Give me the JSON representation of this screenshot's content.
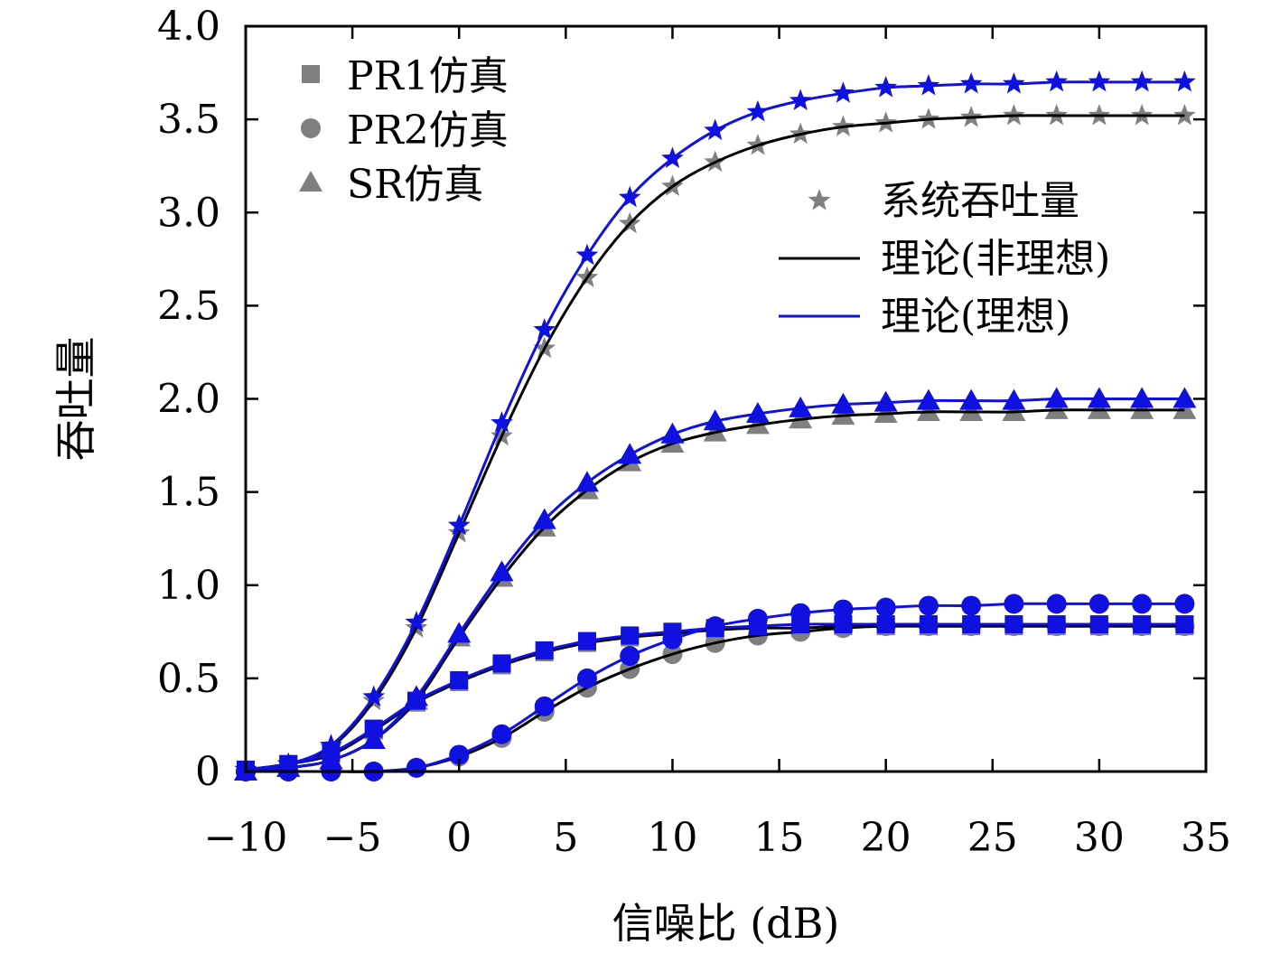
{
  "chart_data": {
    "type": "line",
    "xlabel": "信噪比 (dB)",
    "ylabel": "吞吐量",
    "xlim": [
      -10,
      35
    ],
    "ylim": [
      0,
      4
    ],
    "xticks": [
      -10,
      -5,
      0,
      5,
      10,
      15,
      20,
      25,
      30,
      35
    ],
    "xtick_labels": [
      "−10",
      "−5",
      "0",
      "5",
      "10",
      "15",
      "20",
      "25",
      "30",
      "35"
    ],
    "yticks": [
      0,
      0.5,
      1,
      1.5,
      2,
      2.5,
      3,
      3.5,
      4
    ],
    "ytick_labels": [
      "0",
      "0.5",
      "1.0",
      "1.5",
      "2.0",
      "2.5",
      "3.0",
      "3.5",
      "4.0"
    ],
    "grid": false,
    "x": [
      -10,
      -8,
      -6,
      -4,
      -2,
      0,
      2,
      4,
      6,
      8,
      10,
      12,
      14,
      16,
      18,
      20,
      22,
      24,
      26,
      28,
      30,
      32,
      34
    ],
    "legend_left": [
      {
        "label": "PR1仿真",
        "marker": "square"
      },
      {
        "label": "PR2仿真",
        "marker": "circle"
      },
      {
        "label": "SR仿真",
        "marker": "triangle"
      }
    ],
    "legend_right": [
      {
        "label": "系统吞吐量",
        "marker": "star"
      },
      {
        "label": "理论(非理想)",
        "line_color": "#000000"
      },
      {
        "label": "理论(理想)",
        "line_color": "#1010e0"
      }
    ],
    "colors": {
      "non_ideal_line": "#000000",
      "ideal_line": "#1010e0",
      "non_ideal_marker": "#7f7f7f",
      "ideal_marker": "#1010e0",
      "axis": "#000000"
    },
    "series": [
      {
        "scheme": "non-ideal",
        "marker": "star",
        "values": [
          0.01,
          0.04,
          0.13,
          0.38,
          0.77,
          1.28,
          1.8,
          2.27,
          2.65,
          2.94,
          3.14,
          3.27,
          3.36,
          3.42,
          3.46,
          3.48,
          3.5,
          3.51,
          3.52,
          3.52,
          3.52,
          3.52,
          3.52
        ]
      },
      {
        "scheme": "ideal",
        "marker": "star",
        "values": [
          0.01,
          0.04,
          0.14,
          0.4,
          0.8,
          1.32,
          1.87,
          2.37,
          2.77,
          3.08,
          3.29,
          3.44,
          3.54,
          3.6,
          3.64,
          3.67,
          3.68,
          3.69,
          3.69,
          3.7,
          3.7,
          3.7,
          3.7
        ]
      },
      {
        "scheme": "non-ideal",
        "marker": "triangle",
        "values": [
          0.0,
          0.02,
          0.06,
          0.17,
          0.38,
          0.72,
          1.04,
          1.31,
          1.51,
          1.66,
          1.76,
          1.82,
          1.86,
          1.89,
          1.91,
          1.92,
          1.93,
          1.93,
          1.93,
          1.94,
          1.94,
          1.94,
          1.94
        ]
      },
      {
        "scheme": "ideal",
        "marker": "triangle",
        "values": [
          0.0,
          0.02,
          0.06,
          0.17,
          0.4,
          0.74,
          1.07,
          1.35,
          1.55,
          1.7,
          1.81,
          1.88,
          1.92,
          1.95,
          1.97,
          1.98,
          1.99,
          1.99,
          1.99,
          2.0,
          2.0,
          2.0,
          2.0
        ]
      },
      {
        "scheme": "non-ideal",
        "marker": "square",
        "values": [
          0.01,
          0.04,
          0.09,
          0.22,
          0.37,
          0.48,
          0.57,
          0.64,
          0.69,
          0.72,
          0.74,
          0.76,
          0.77,
          0.77,
          0.78,
          0.78,
          0.78,
          0.78,
          0.78,
          0.78,
          0.78,
          0.78,
          0.78
        ]
      },
      {
        "scheme": "ideal",
        "marker": "square",
        "values": [
          0.01,
          0.04,
          0.1,
          0.23,
          0.38,
          0.49,
          0.58,
          0.65,
          0.7,
          0.73,
          0.75,
          0.77,
          0.78,
          0.79,
          0.79,
          0.79,
          0.79,
          0.79,
          0.79,
          0.79,
          0.79,
          0.79,
          0.79
        ]
      },
      {
        "scheme": "non-ideal",
        "marker": "circle",
        "values": [
          0.0,
          0.0,
          0.0,
          0.0,
          0.02,
          0.08,
          0.18,
          0.32,
          0.45,
          0.55,
          0.63,
          0.69,
          0.73,
          0.75,
          0.77,
          0.78,
          0.78,
          0.78,
          0.78,
          0.78,
          0.78,
          0.78,
          0.78
        ]
      },
      {
        "scheme": "ideal",
        "marker": "circle",
        "values": [
          0.0,
          0.0,
          0.0,
          0.0,
          0.02,
          0.09,
          0.2,
          0.35,
          0.5,
          0.62,
          0.71,
          0.78,
          0.82,
          0.85,
          0.87,
          0.88,
          0.89,
          0.89,
          0.9,
          0.9,
          0.9,
          0.9,
          0.9
        ]
      }
    ]
  }
}
